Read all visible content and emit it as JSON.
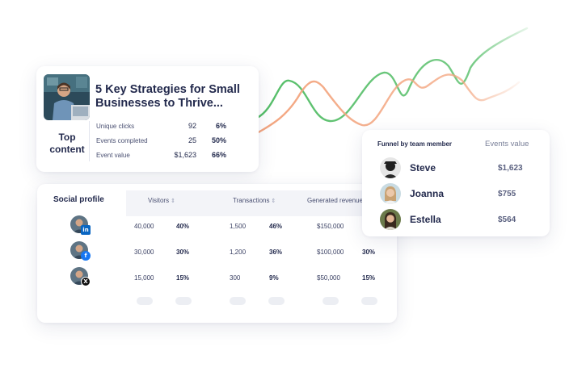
{
  "top_content": {
    "article_title": "5 Key Strategies for Small Businesses to Thrive...",
    "label": "Top content",
    "metrics": [
      {
        "label": "Unique clicks",
        "value": "92",
        "pct": "6%"
      },
      {
        "label": "Events completed",
        "value": "25",
        "pct": "50%"
      },
      {
        "label": "Event value",
        "value": "$1,623",
        "pct": "66%"
      }
    ]
  },
  "social": {
    "title": "Social profile",
    "columns": {
      "visitors": "Visitors",
      "transactions": "Transactions",
      "revenue": "Generated revenue"
    },
    "sort_icon": "sort-arrows-icon",
    "rows": [
      {
        "network": "LinkedIn",
        "badge_icon": "linkedin-icon",
        "badge_text": "in",
        "badge_color": "#0a66c2",
        "visitors": "40,000",
        "visitors_pct": "40%",
        "transactions": "1,500",
        "transactions_pct": "46%",
        "revenue": "$150,000",
        "revenue_pct": ""
      },
      {
        "network": "Facebook",
        "badge_icon": "facebook-icon",
        "badge_text": "f",
        "badge_color": "#1877f2",
        "visitors": "30,000",
        "visitors_pct": "30%",
        "transactions": "1,200",
        "transactions_pct": "36%",
        "revenue": "$100,000",
        "revenue_pct": "30%"
      },
      {
        "network": "X",
        "badge_icon": "x-icon",
        "badge_text": "X",
        "badge_color": "#111111",
        "visitors": "15,000",
        "visitors_pct": "15%",
        "transactions": "300",
        "transactions_pct": "9%",
        "revenue": "$50,000",
        "revenue_pct": "15%"
      }
    ]
  },
  "funnel": {
    "title": "Funnel by team member",
    "value_header": "Events value",
    "members": [
      {
        "name": "Steve",
        "value": "$1,623"
      },
      {
        "name": "Joanna",
        "value": "$755"
      },
      {
        "name": "Estella",
        "value": "$564"
      }
    ]
  },
  "colors": {
    "green_line": "#55be68",
    "orange_line": "#f3a57f",
    "navy_text": "#232a4d"
  }
}
